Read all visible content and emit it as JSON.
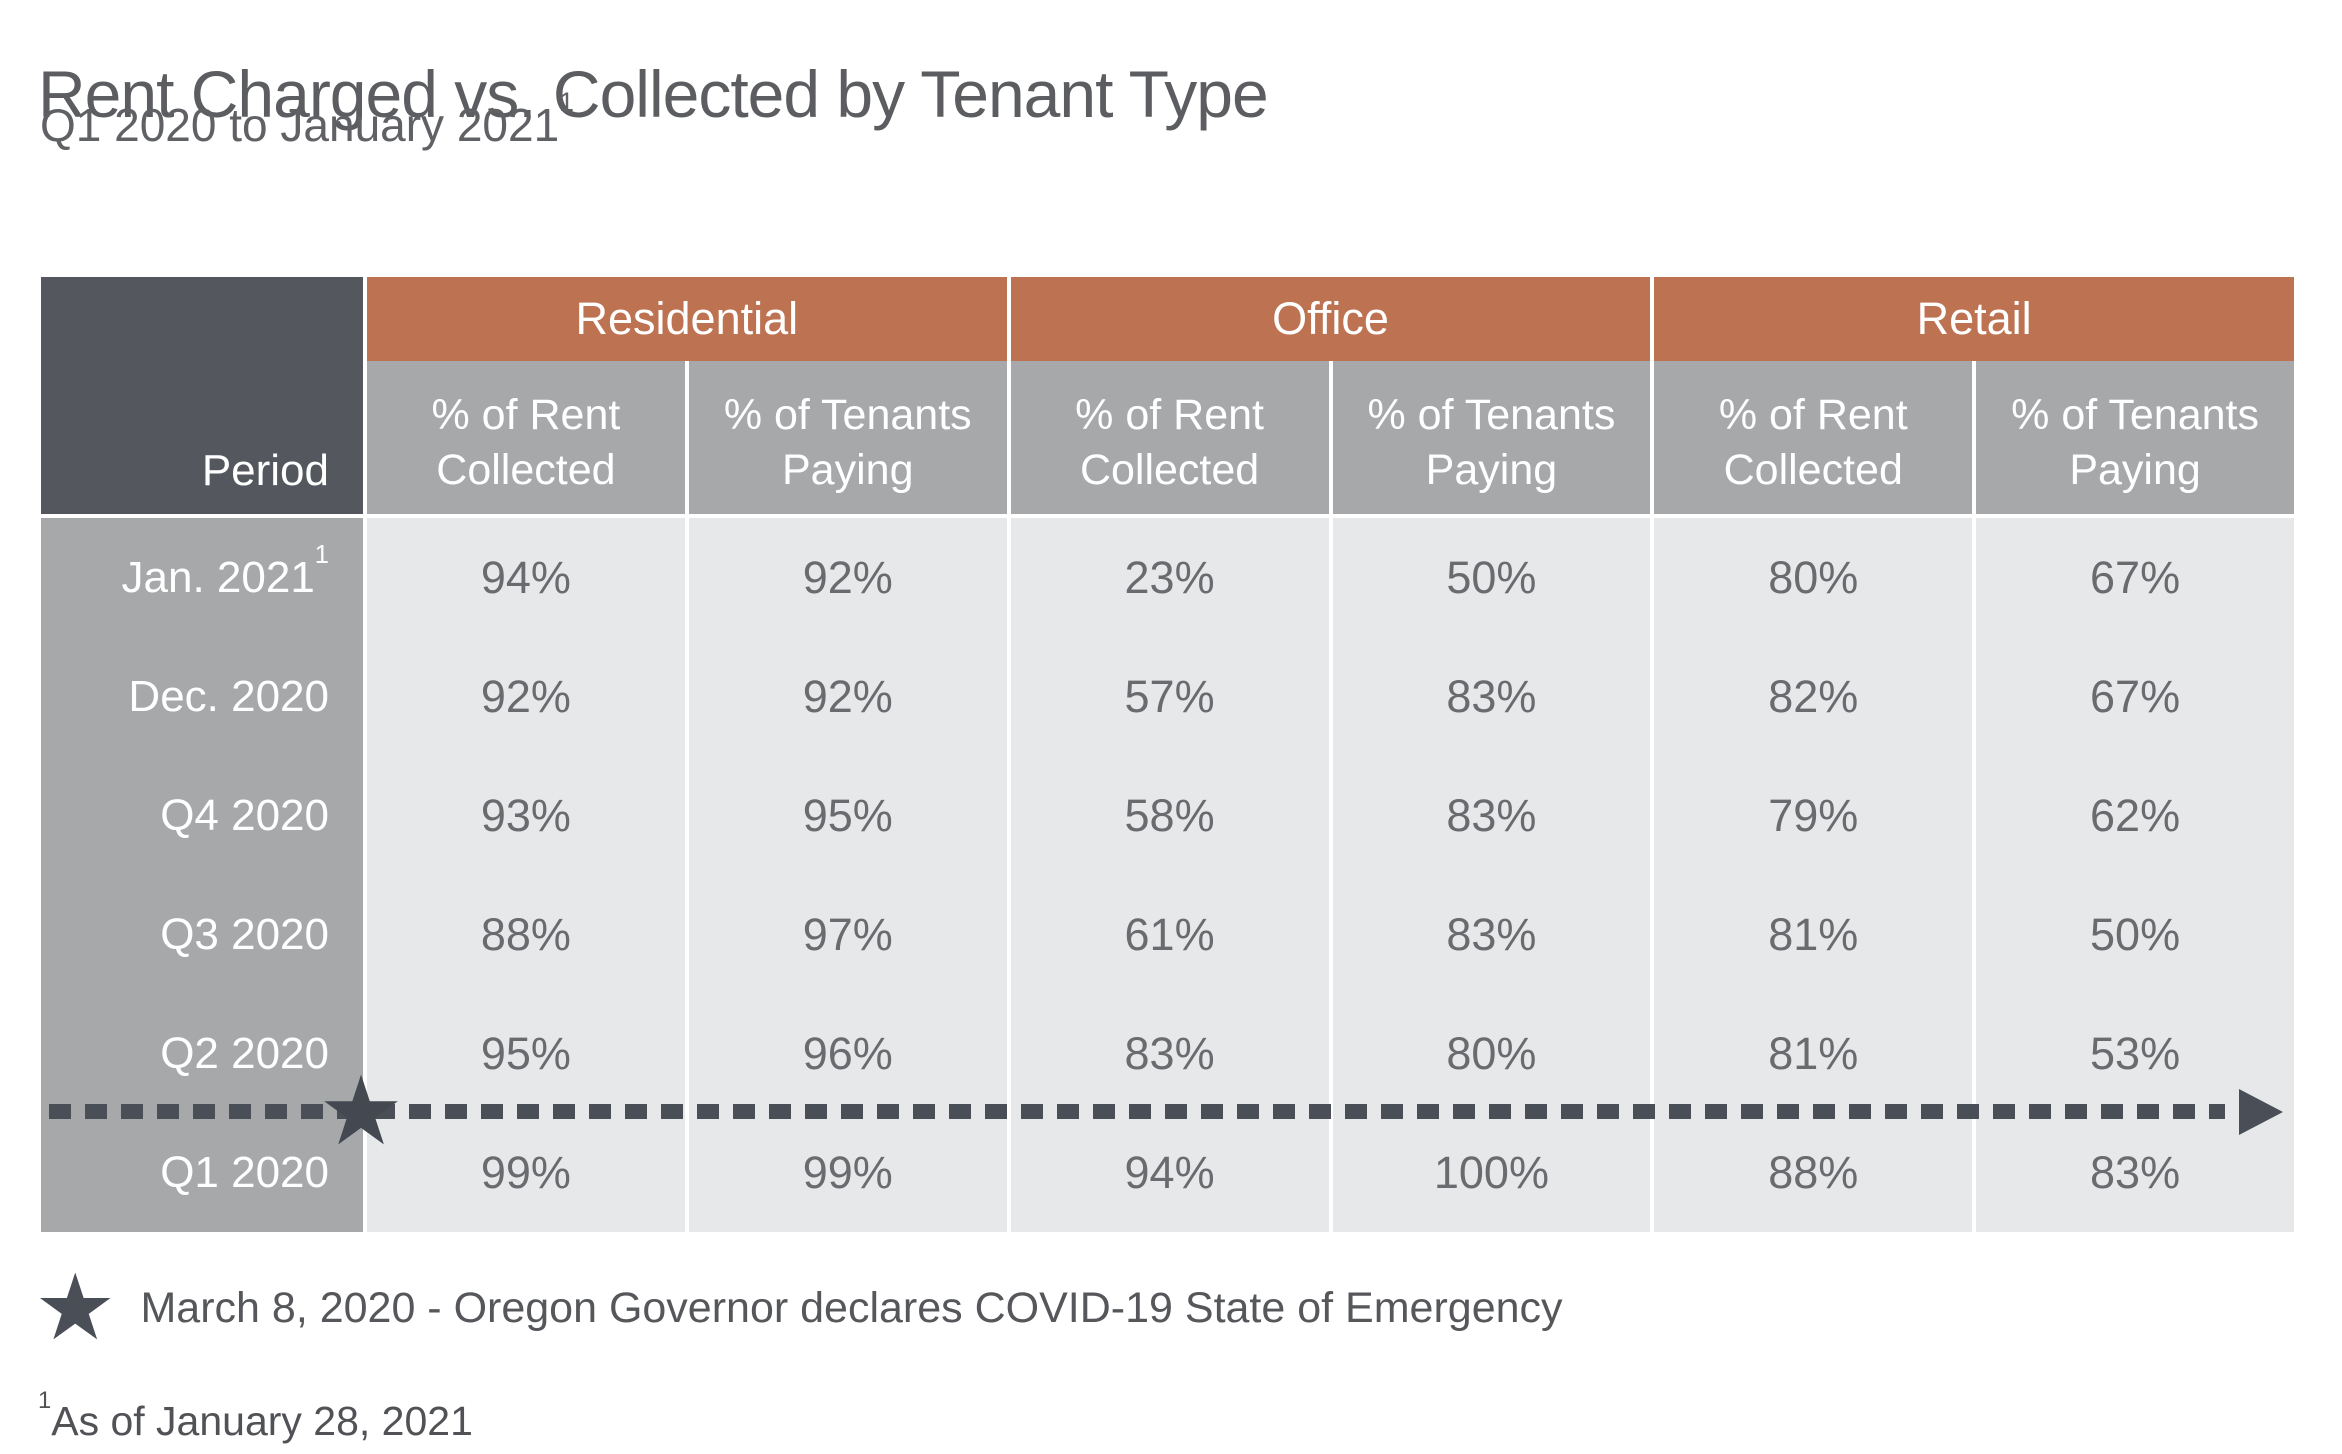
{
  "page": {
    "title": "Rent Charged vs. Collected by Tenant Type",
    "subtitle": "Q1 2020 to January 2021",
    "subtitle_superscript": "1"
  },
  "table": {
    "period_header": "Period",
    "groups": [
      "Residential",
      "Office",
      "Retail"
    ],
    "sub_headers": [
      "% of Rent Collected",
      "% of Tenants Paying",
      "% of Rent Collected",
      "% of Tenants Paying",
      "% of Rent Collected",
      "% of Tenants Paying"
    ],
    "rows": [
      {
        "period": "Jan. 2021",
        "period_superscript": "1",
        "values": [
          "94%",
          "92%",
          "23%",
          "50%",
          "80%",
          "67%"
        ]
      },
      {
        "period": "Dec. 2020",
        "values": [
          "92%",
          "92%",
          "57%",
          "83%",
          "82%",
          "67%"
        ]
      },
      {
        "period": "Q4 2020",
        "values": [
          "93%",
          "95%",
          "58%",
          "83%",
          "79%",
          "62%"
        ]
      },
      {
        "period": "Q3 2020",
        "values": [
          "88%",
          "97%",
          "61%",
          "83%",
          "81%",
          "50%"
        ]
      },
      {
        "period": "Q2 2020",
        "values": [
          "95%",
          "96%",
          "83%",
          "80%",
          "81%",
          "53%"
        ]
      },
      {
        "period": "Q1 2020",
        "values": [
          "99%",
          "99%",
          "94%",
          "100%",
          "88%",
          "83%"
        ]
      }
    ]
  },
  "annotation": {
    "star_icon": "★",
    "text": "March 8, 2020 - Oregon Governor declares COVID-19 State of Emergency"
  },
  "footnote": {
    "superscript": "1",
    "text": "As of January 28, 2021"
  },
  "colors": {
    "accent_orange": "#bd7352",
    "header_dark": "#54575e",
    "header_gray": "#a6a8aa",
    "row_light": "#e7e8e9",
    "timeline_dark": "#4a4f57",
    "value_text_gray": "#696b6e",
    "title_gray": "#5b5d60"
  },
  "chart_data": {
    "type": "table",
    "title": "Rent Charged vs. Collected by Tenant Type",
    "subtitle": "Q1 2020 to January 2021",
    "row_label_header": "Period",
    "column_groups": [
      "Residential",
      "Office",
      "Retail"
    ],
    "sub_columns_per_group": [
      "% of Rent Collected",
      "% of Tenants Paying"
    ],
    "periods": [
      "Jan. 2021",
      "Dec. 2020",
      "Q4 2020",
      "Q3 2020",
      "Q2 2020",
      "Q1 2020"
    ],
    "values_pct": {
      "residential_rent_collected": [
        94,
        92,
        93,
        88,
        95,
        99
      ],
      "residential_tenants_paying": [
        92,
        92,
        95,
        97,
        96,
        99
      ],
      "office_rent_collected": [
        23,
        57,
        58,
        61,
        83,
        94
      ],
      "office_tenants_paying": [
        50,
        83,
        83,
        83,
        80,
        100
      ],
      "retail_rent_collected": [
        80,
        82,
        79,
        81,
        81,
        88
      ],
      "retail_tenants_paying": [
        67,
        67,
        62,
        50,
        53,
        83
      ]
    },
    "timeline_marker": "Star between Q2 2020 and Q1 2020 rows with dashed arrow pointing right",
    "annotation": "March 8, 2020 - Oregon Governor declares COVID-19 State of Emergency",
    "footnote": "As of January 28, 2021"
  }
}
